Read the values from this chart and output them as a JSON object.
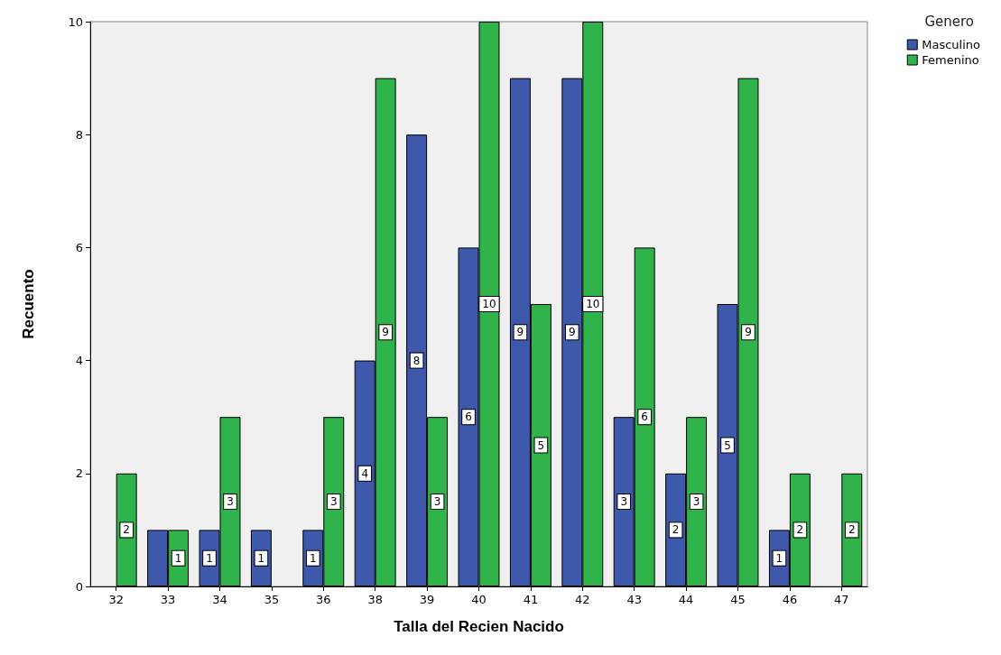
{
  "chart_data": {
    "type": "bar",
    "xlabel": "Talla del Recien Nacido",
    "ylabel": "Recuento",
    "legend_title": "Genero",
    "legend": "top right",
    "categories": [
      "32",
      "33",
      "34",
      "35",
      "36",
      "38",
      "39",
      "40",
      "41",
      "42",
      "43",
      "44",
      "45",
      "46",
      "47"
    ],
    "series": [
      {
        "name": "Masculino",
        "color": "#3e58ac",
        "values": [
          null,
          1,
          1,
          1,
          1,
          4,
          8,
          6,
          9,
          9,
          3,
          2,
          5,
          1,
          null
        ],
        "value_labels": [
          null,
          null,
          "1",
          "1",
          "1",
          "4",
          "8",
          "6",
          "9",
          "9",
          "3",
          "2",
          "5",
          "1",
          null
        ]
      },
      {
        "name": "Femenino",
        "color": "#2fb34a",
        "values": [
          2,
          1,
          3,
          null,
          3,
          9,
          3,
          10,
          5,
          10,
          6,
          3,
          9,
          2,
          2
        ],
        "value_labels": [
          "2",
          "1",
          "3",
          null,
          "3",
          "9",
          "3",
          "10",
          "5",
          "10",
          "6",
          "3",
          "9",
          "2",
          "2"
        ]
      }
    ],
    "ylim": [
      0,
      10
    ],
    "yticks": [
      0,
      2,
      4,
      6,
      8,
      10
    ],
    "grid": false
  }
}
